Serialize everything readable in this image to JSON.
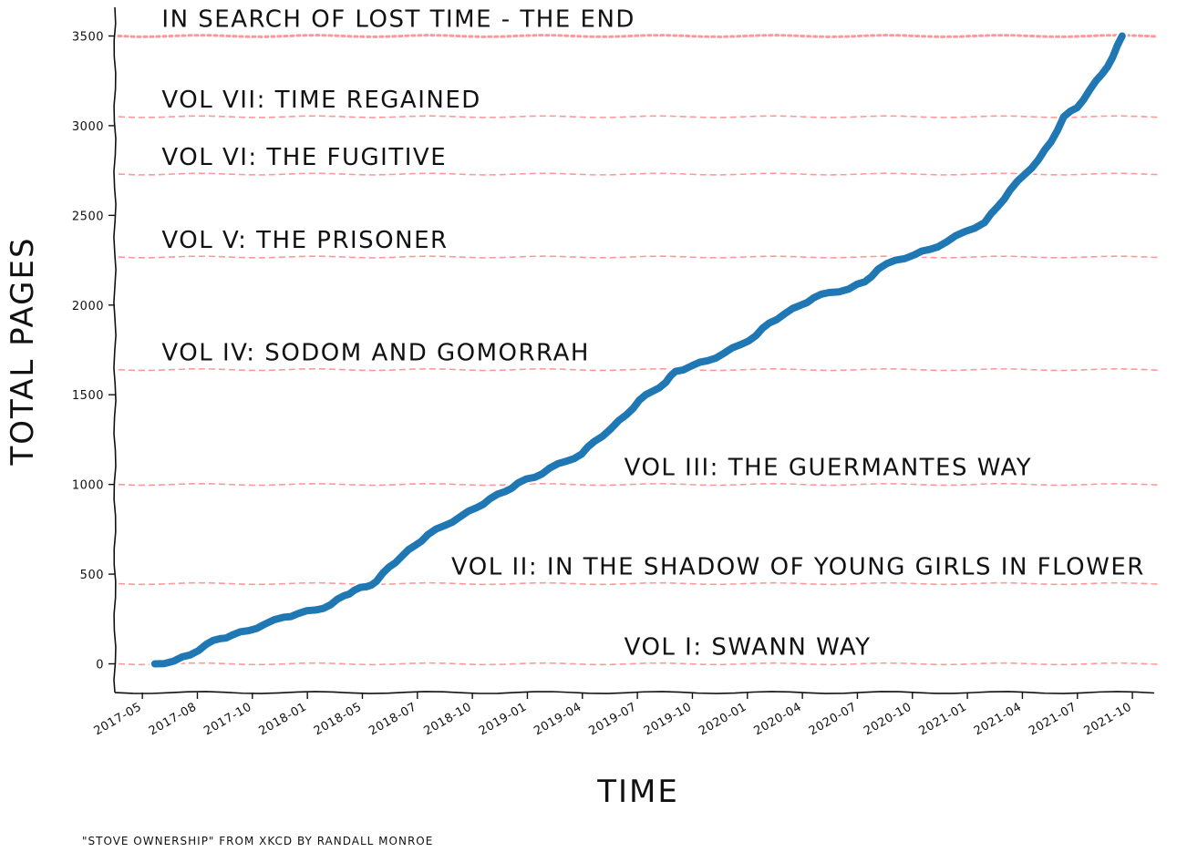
{
  "chart_data": {
    "type": "line",
    "xlabel": "TIME",
    "ylabel": "TOTAL PAGES",
    "xlim": [
      "2017-04-18",
      "2021-11-01"
    ],
    "ylim": [
      -160,
      3660
    ],
    "x_ticks": [
      "2017-05",
      "2017-08",
      "2017-10",
      "2018-01",
      "2018-05",
      "2018-07",
      "2018-10",
      "2019-01",
      "2019-04",
      "2019-07",
      "2019-10",
      "2020-01",
      "2020-04",
      "2020-07",
      "2020-10",
      "2021-01",
      "2021-04",
      "2021-07",
      "2021-10"
    ],
    "y_ticks": [
      0,
      500,
      1000,
      1500,
      2000,
      2500,
      3000,
      3500
    ],
    "series": [
      {
        "color": "#1f77b4",
        "points": [
          [
            "2017-06-20",
            0
          ],
          [
            "2017-07-20",
            15
          ],
          [
            "2017-08-15",
            50
          ],
          [
            "2017-09-10",
            110
          ],
          [
            "2017-10-01",
            140
          ],
          [
            "2017-10-20",
            160
          ],
          [
            "2017-11-15",
            185
          ],
          [
            "2017-12-10",
            220
          ],
          [
            "2018-01-10",
            260
          ],
          [
            "2018-02-01",
            280
          ],
          [
            "2018-03-01",
            300
          ],
          [
            "2018-03-25",
            330
          ],
          [
            "2018-04-15",
            380
          ],
          [
            "2018-05-01",
            410
          ],
          [
            "2018-05-20",
            430
          ],
          [
            "2018-06-05",
            460
          ],
          [
            "2018-06-25",
            540
          ],
          [
            "2018-07-15",
            600
          ],
          [
            "2018-08-05",
            660
          ],
          [
            "2018-08-25",
            720
          ],
          [
            "2018-09-20",
            770
          ],
          [
            "2018-10-15",
            820
          ],
          [
            "2018-11-10",
            870
          ],
          [
            "2018-12-01",
            920
          ],
          [
            "2018-12-25",
            960
          ],
          [
            "2019-01-15",
            1010
          ],
          [
            "2019-02-10",
            1040
          ],
          [
            "2019-03-05",
            1090
          ],
          [
            "2019-04-01",
            1130
          ],
          [
            "2019-04-25",
            1170
          ],
          [
            "2019-05-15",
            1240
          ],
          [
            "2019-06-10",
            1310
          ],
          [
            "2019-07-05",
            1390
          ],
          [
            "2019-07-25",
            1470
          ],
          [
            "2019-08-15",
            1520
          ],
          [
            "2019-09-05",
            1570
          ],
          [
            "2019-09-20",
            1630
          ],
          [
            "2019-10-15",
            1660
          ],
          [
            "2019-11-10",
            1690
          ],
          [
            "2019-12-05",
            1730
          ],
          [
            "2020-01-01",
            1780
          ],
          [
            "2020-01-25",
            1830
          ],
          [
            "2020-02-15",
            1900
          ],
          [
            "2020-03-10",
            1950
          ],
          [
            "2020-04-05",
            2000
          ],
          [
            "2020-04-25",
            2040
          ],
          [
            "2020-05-20",
            2070
          ],
          [
            "2020-06-20",
            2090
          ],
          [
            "2020-07-15",
            2130
          ],
          [
            "2020-08-05",
            2200
          ],
          [
            "2020-09-01",
            2250
          ],
          [
            "2020-10-01",
            2280
          ],
          [
            "2020-10-25",
            2310
          ],
          [
            "2020-11-20",
            2350
          ],
          [
            "2020-12-20",
            2410
          ],
          [
            "2021-01-20",
            2460
          ],
          [
            "2021-02-10",
            2550
          ],
          [
            "2021-03-01",
            2640
          ],
          [
            "2021-03-25",
            2730
          ],
          [
            "2021-04-15",
            2810
          ],
          [
            "2021-05-05",
            2910
          ],
          [
            "2021-05-25",
            3050
          ],
          [
            "2021-06-15",
            3100
          ],
          [
            "2021-07-05",
            3200
          ],
          [
            "2021-07-25",
            3290
          ],
          [
            "2021-08-10",
            3380
          ],
          [
            "2021-08-25",
            3500
          ]
        ]
      }
    ],
    "reference_lines": [
      {
        "label": "VOL I: SWANN WAY",
        "y": 0,
        "style": "dashed",
        "label_x": "2019-07-01"
      },
      {
        "label": "VOL II: IN THE SHADOW OF YOUNG GIRLS IN FLOWER",
        "y": 447,
        "style": "dashed",
        "label_x": "2018-10-01"
      },
      {
        "label": "VOL III: THE GUERMANTES WAY",
        "y": 1000,
        "style": "dashed",
        "label_x": "2019-07-01"
      },
      {
        "label": "VOL IV: SODOM AND GOMORRAH",
        "y": 1640,
        "style": "dashed",
        "label_x": "2017-07-01"
      },
      {
        "label": "VOL V: THE PRISONER",
        "y": 2268,
        "style": "dashed",
        "label_x": "2017-07-01"
      },
      {
        "label": "VOL VI: THE FUGITIVE",
        "y": 2730,
        "style": "dashed",
        "label_x": "2017-07-01"
      },
      {
        "label": "VOL VII: TIME REGAINED",
        "y": 3050,
        "style": "dashed",
        "label_x": "2017-07-01"
      },
      {
        "label": "IN SEARCH OF LOST TIME - THE END",
        "y": 3500,
        "style": "dotted",
        "label_x": "2017-07-01"
      }
    ],
    "reference_color": "#ff9999",
    "grid": false
  },
  "footnote": "\"STOVE OWNERSHIP\" FROM XKCD BY RANDALL MONROE"
}
